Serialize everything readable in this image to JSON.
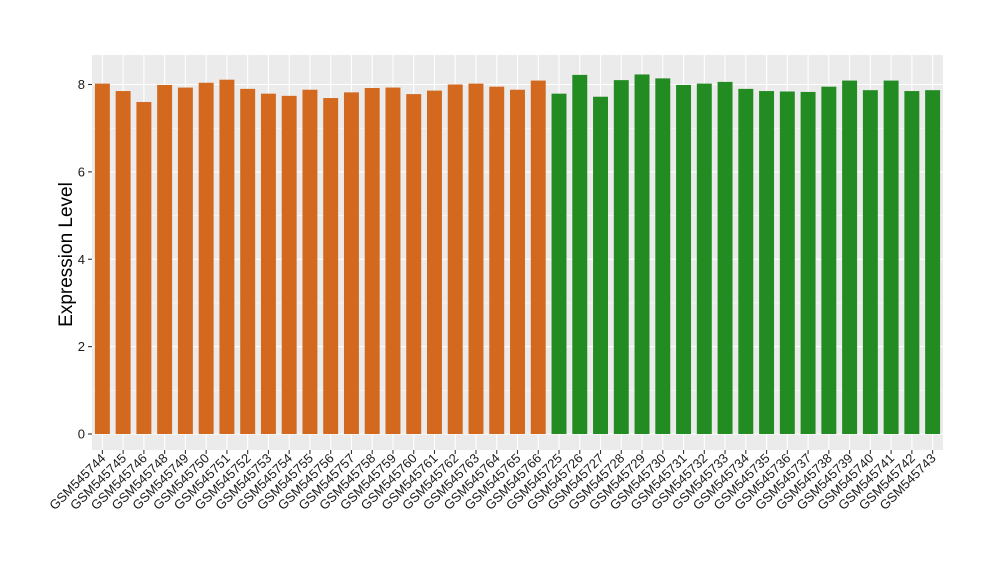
{
  "chart_data": {
    "type": "bar",
    "ylabel": "Expression Level",
    "xlabel": "",
    "ylim": [
      0,
      8.5
    ],
    "yticks": [
      0,
      2,
      4,
      6,
      8
    ],
    "grid": true,
    "background": "#ebebeb",
    "gridColor": "#ffffff",
    "categories": [
      "GSM545744",
      "GSM545745",
      "GSM545746",
      "GSM545748",
      "GSM545749",
      "GSM545750",
      "GSM545751",
      "GSM545752",
      "GSM545753",
      "GSM545754",
      "GSM545755",
      "GSM545756",
      "GSM545757",
      "GSM545758",
      "GSM545759",
      "GSM545760",
      "GSM545761",
      "GSM545762",
      "GSM545763",
      "GSM545764",
      "GSM545765",
      "GSM545766",
      "GSM545725",
      "GSM545726",
      "GSM545727",
      "GSM545728",
      "GSM545729",
      "GSM545730",
      "GSM545731",
      "GSM545732",
      "GSM545733",
      "GSM545734",
      "GSM545735",
      "GSM545736",
      "GSM545737",
      "GSM545738",
      "GSM545739",
      "GSM545740",
      "GSM545741",
      "GSM545742",
      "GSM545743"
    ],
    "values": [
      8.02,
      7.85,
      7.6,
      7.99,
      7.93,
      8.04,
      8.11,
      7.9,
      7.79,
      7.74,
      7.88,
      7.69,
      7.82,
      7.92,
      7.93,
      7.78,
      7.86,
      8.0,
      8.02,
      7.95,
      7.88,
      8.09,
      7.79,
      8.22,
      7.72,
      8.1,
      8.23,
      8.14,
      7.99,
      8.02,
      8.06,
      7.9,
      7.85,
      7.84,
      7.83,
      7.95,
      8.09,
      7.87,
      8.09,
      7.85,
      7.87
    ],
    "groups": [
      {
        "count": 22,
        "color": "#d2691e"
      },
      {
        "count": 19,
        "color": "#228b22"
      }
    ]
  }
}
